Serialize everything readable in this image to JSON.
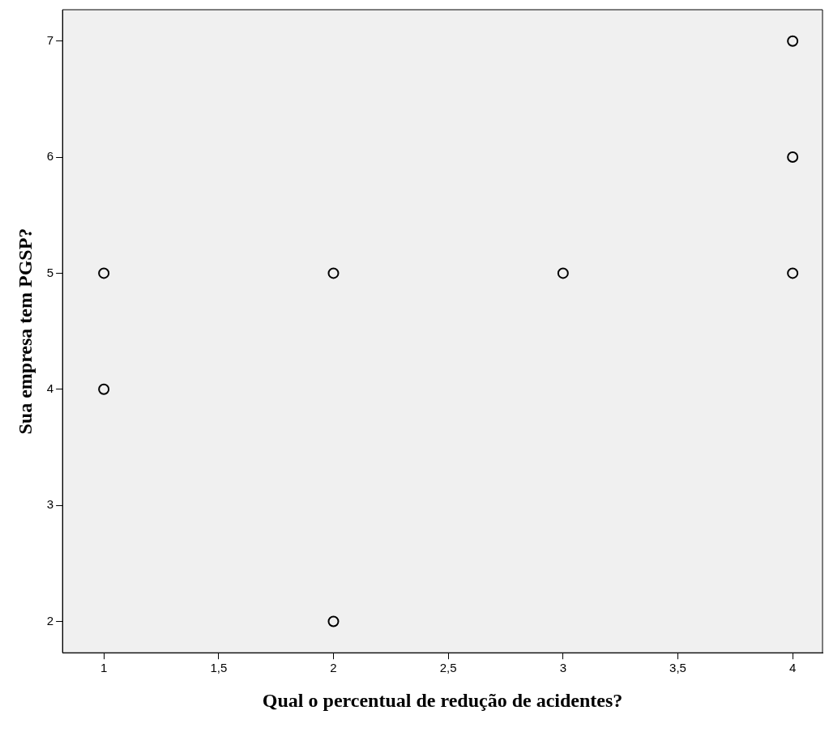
{
  "chart_data": {
    "type": "scatter",
    "xlabel": "Qual o percentual de redução de acidentes?",
    "ylabel": "Sua empresa tem PGSP?",
    "x": [
      1,
      1,
      2,
      2,
      3,
      4,
      4,
      4
    ],
    "values": [
      5,
      4,
      5,
      2,
      5,
      7,
      6,
      5
    ],
    "color": "#000000",
    "marker": "circle",
    "legend": false,
    "grid": false,
    "xlim": [
      0.82,
      4.13
    ],
    "ylim": [
      1.73,
      7.27
    ],
    "xticks": [
      1,
      {
        "value": 1.5,
        "label": "1,5"
      },
      2,
      {
        "value": 2.5,
        "label": "2,5"
      },
      3,
      {
        "value": 3.5,
        "label": "3,5"
      },
      4
    ],
    "yticks": [
      2,
      3,
      4,
      5,
      6,
      7
    ]
  }
}
